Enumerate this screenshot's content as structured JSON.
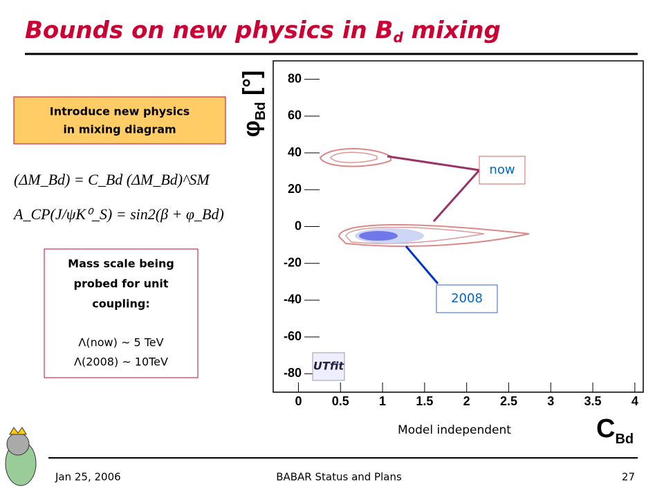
{
  "header": {
    "title": "Bounds on new physics in B",
    "title_sub": "d",
    "title_end": "mixing"
  },
  "intro_box": {
    "lines": [
      "Introduce new physics",
      "in mixing diagram"
    ]
  },
  "equations": [
    "(ΔM_Bd) = C_Bd (ΔM_Bd)^SM",
    "A_CP(J/ψK⁰_S) = sin2(β + φ_Bd)"
  ],
  "mass_box": {
    "lines": [
      "Mass scale being",
      "probed for unit",
      "coupling:",
      "Λ(now) ~ 5 TeV",
      "Λ(2008) ~ 10TeV"
    ]
  },
  "chart_data": {
    "type": "contour",
    "y_label": "φ",
    "y_label_sub": "Bd",
    "y_label_unit": "[°]",
    "x_label": "C",
    "x_label_sub": "Bd",
    "xlim": [
      -0.3,
      4.1
    ],
    "xticks": [
      0,
      0.5,
      1,
      1.5,
      2,
      2.5,
      3,
      3.5,
      4
    ],
    "ylim": [
      -90,
      90
    ],
    "yticks": [
      -80,
      -60,
      -40,
      -20,
      0,
      20,
      40,
      60,
      80
    ],
    "annotations": [
      "now",
      "2008",
      "Model independent"
    ],
    "logo": "UTfit"
  },
  "footer": {
    "date": "Jan 25, 2006",
    "center": "BABAR Status and Plans",
    "page": "27"
  }
}
